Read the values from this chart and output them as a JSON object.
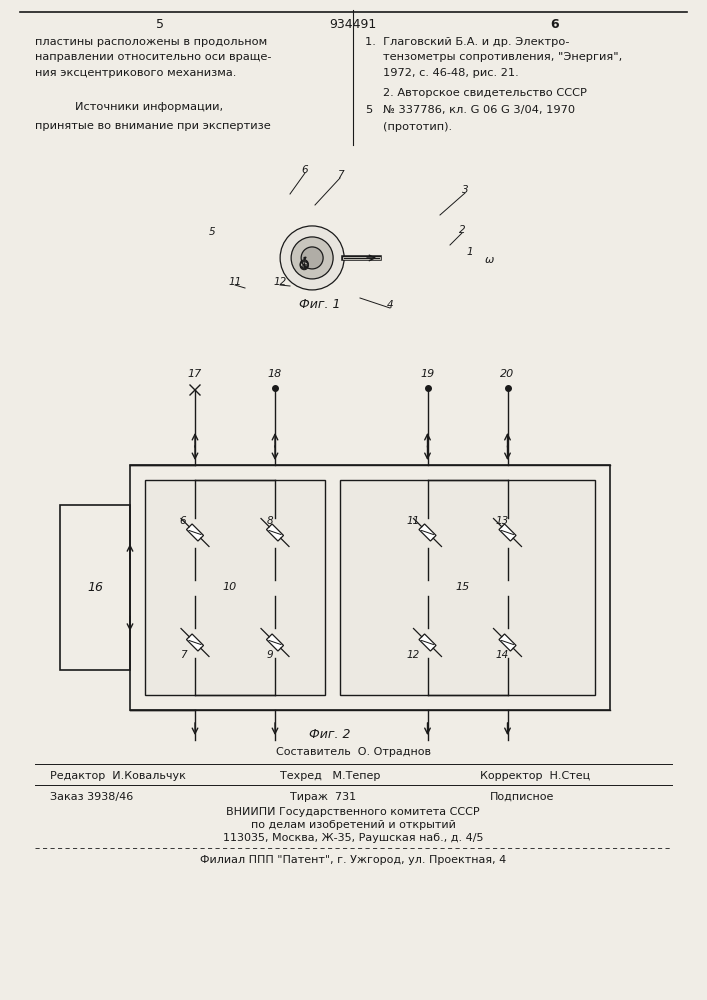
{
  "patent_number": "934491",
  "col_left_num": "5",
  "col_right_num": "6",
  "text_left_line1": "пластины расположены в продольном",
  "text_left_line2": "направлении относительно оси враще-",
  "text_left_line3": "ния эксцентрикового механизма.",
  "text_left_section": "Источники информации,",
  "text_left_section2": "принятые во внимание при экспертизе",
  "text_right_ref1_line1": "1.  Глаговский Б.А. и др. Электро-",
  "text_right_ref1_line2": "тензометры сопротивления, \"Энергия\",",
  "text_right_ref1_line3": "1972, с. 46-48, рис. 21.",
  "text_right_ref2_line1": "2. Авторское свидетельство СССР",
  "text_right_ref2_num": "5",
  "text_right_ref2_line2": "№ 337786, кл. G 06 G 3/04, 1970",
  "text_right_ref2_line3": "(прототип).",
  "fig1_caption": "Фиг. 1",
  "fig2_caption": "Фиг. 2",
  "footer_editor": "Редактор  И.Ковальчук",
  "footer_techred": "Техред   М.Тепер",
  "footer_corrector": "Корректор  Н.Стец",
  "footer_composer": "Составитель  О. Отраднов",
  "footer_order": "Заказ 3938/46",
  "footer_tirazh": "Тираж  731",
  "footer_podpisnoe": "Подписное",
  "footer_vniip1": "ВНИИПИ Государственного комитета СССР",
  "footer_vniip2": "по делам изобретений и открытий",
  "footer_vniip3": "113035, Москва, Ж-35, Раушская наб., д. 4/5",
  "footer_filial": "Филиал ППП \"Патент\", г. Ужгород, ул. Проектная, 4",
  "bg_color": "#f0ede6",
  "text_color": "#1a1a1a",
  "line_color": "#1a1a1a"
}
